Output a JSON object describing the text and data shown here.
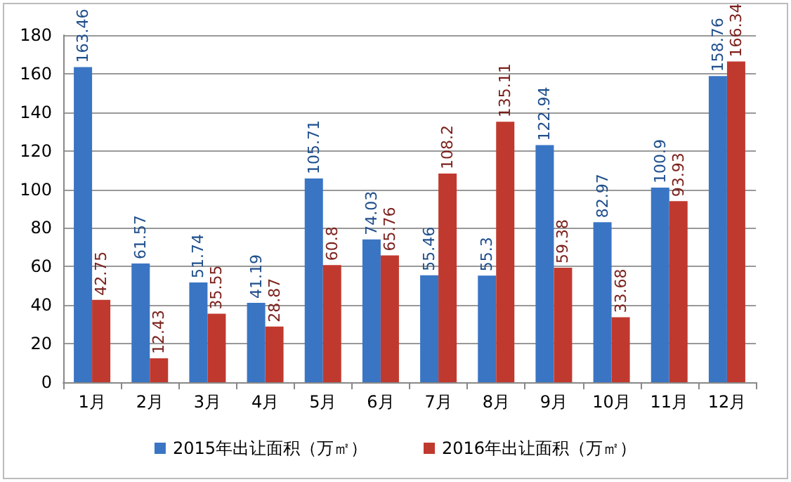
{
  "chart_data": {
    "type": "bar",
    "categories": [
      "1月",
      "2月",
      "3月",
      "4月",
      "5月",
      "6月",
      "7月",
      "8月",
      "9月",
      "10月",
      "11月",
      "12月"
    ],
    "series": [
      {
        "name": "2015年出让面积（万㎡）",
        "color": "#3a75c4",
        "values": [
          163.46,
          61.57,
          51.74,
          41.19,
          105.71,
          74.03,
          55.46,
          55.3,
          122.94,
          82.97,
          100.9,
          158.76
        ]
      },
      {
        "name": "2016年出让面积（万㎡）",
        "color": "#c0392f",
        "values": [
          42.75,
          12.43,
          35.55,
          28.87,
          60.8,
          65.76,
          108.2,
          135.11,
          59.38,
          33.68,
          93.93,
          166.34
        ]
      }
    ],
    "ylim": [
      0,
      180
    ],
    "yticks": [
      0,
      20,
      40,
      60,
      80,
      100,
      120,
      140,
      160,
      180
    ],
    "grid": "y",
    "legend": "bottom",
    "data_labels": true
  }
}
